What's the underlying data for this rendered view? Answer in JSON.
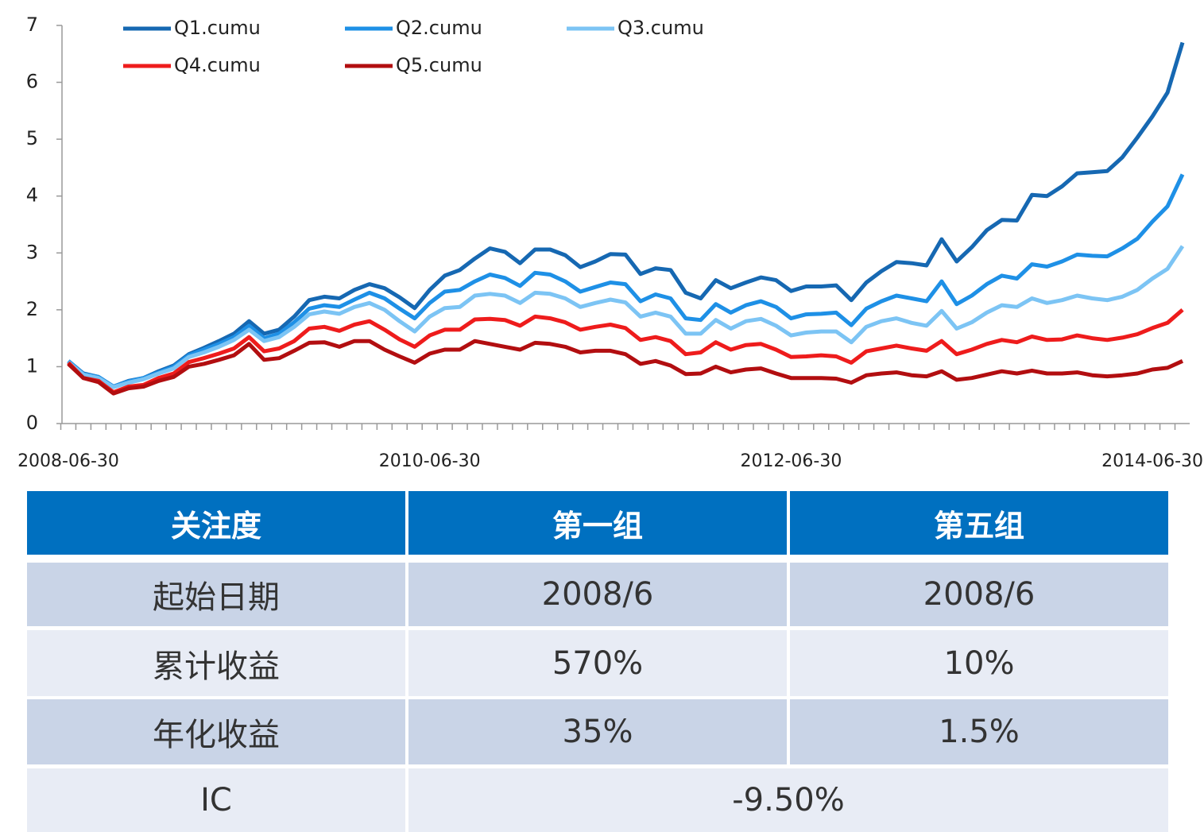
{
  "chart_data": {
    "type": "line",
    "categories": [
      "2008-06-30",
      null,
      null,
      null,
      null,
      null,
      null,
      null,
      null,
      null,
      null,
      null,
      null,
      null,
      null,
      null,
      null,
      null,
      null,
      null,
      null,
      null,
      null,
      null,
      "2010-06-30",
      null,
      null,
      null,
      null,
      null,
      null,
      null,
      null,
      null,
      null,
      null,
      null,
      null,
      null,
      null,
      null,
      null,
      null,
      null,
      null,
      null,
      null,
      null,
      "2012-06-30",
      null,
      null,
      null,
      null,
      null,
      null,
      null,
      null,
      null,
      null,
      null,
      null,
      null,
      null,
      null,
      null,
      null,
      null,
      null,
      null,
      null,
      null,
      null,
      "2014-06-30",
      null,
      null
    ],
    "ylim": [
      0,
      7
    ],
    "yticks": [
      0,
      1,
      2,
      3,
      4,
      5,
      6,
      7
    ],
    "grid": false,
    "series": [
      {
        "name": "Q1.cumu",
        "color": "#1668b2",
        "values": [
          1.1,
          0.88,
          0.82,
          0.65,
          0.75,
          0.8,
          0.92,
          1.02,
          1.22,
          1.33,
          1.45,
          1.58,
          1.8,
          1.58,
          1.65,
          1.88,
          2.17,
          2.23,
          2.2,
          2.35,
          2.45,
          2.38,
          2.22,
          2.03,
          2.35,
          2.6,
          2.7,
          2.9,
          3.08,
          3.02,
          2.82,
          3.06,
          3.06,
          2.96,
          2.75,
          2.85,
          2.98,
          2.97,
          2.63,
          2.73,
          2.7,
          2.3,
          2.2,
          2.52,
          2.38,
          2.48,
          2.57,
          2.52,
          2.33,
          2.41,
          2.41,
          2.43,
          2.17,
          2.48,
          2.68,
          2.84,
          2.82,
          2.78,
          3.24,
          2.85,
          3.1,
          3.4,
          3.58,
          3.57,
          4.02,
          4.0,
          4.17,
          4.4,
          4.42,
          4.44,
          4.68,
          5.03,
          5.4,
          5.82,
          6.7
        ]
      },
      {
        "name": "Q2.cumu",
        "color": "#1e90e6",
        "values": [
          1.1,
          0.87,
          0.82,
          0.65,
          0.74,
          0.8,
          0.9,
          1.0,
          1.2,
          1.3,
          1.4,
          1.52,
          1.72,
          1.5,
          1.58,
          1.78,
          2.02,
          2.08,
          2.05,
          2.18,
          2.3,
          2.2,
          2.02,
          1.85,
          2.12,
          2.32,
          2.35,
          2.5,
          2.62,
          2.56,
          2.42,
          2.65,
          2.62,
          2.5,
          2.32,
          2.4,
          2.48,
          2.45,
          2.15,
          2.27,
          2.2,
          1.85,
          1.82,
          2.1,
          1.95,
          2.08,
          2.15,
          2.05,
          1.85,
          1.92,
          1.93,
          1.95,
          1.73,
          2.02,
          2.15,
          2.25,
          2.2,
          2.15,
          2.5,
          2.1,
          2.25,
          2.45,
          2.6,
          2.55,
          2.8,
          2.76,
          2.85,
          2.97,
          2.95,
          2.94,
          3.08,
          3.25,
          3.55,
          3.82,
          4.38
        ]
      },
      {
        "name": "Q3.cumu",
        "color": "#7cc4f4",
        "values": [
          1.08,
          0.86,
          0.8,
          0.64,
          0.72,
          0.78,
          0.88,
          0.97,
          1.17,
          1.25,
          1.35,
          1.47,
          1.65,
          1.45,
          1.52,
          1.7,
          1.92,
          1.97,
          1.93,
          2.05,
          2.12,
          2.0,
          1.8,
          1.62,
          1.88,
          2.03,
          2.05,
          2.25,
          2.28,
          2.25,
          2.12,
          2.3,
          2.28,
          2.2,
          2.05,
          2.12,
          2.18,
          2.13,
          1.88,
          1.95,
          1.88,
          1.58,
          1.58,
          1.82,
          1.67,
          1.8,
          1.84,
          1.72,
          1.55,
          1.6,
          1.62,
          1.62,
          1.43,
          1.7,
          1.8,
          1.85,
          1.77,
          1.72,
          1.98,
          1.67,
          1.78,
          1.95,
          2.08,
          2.05,
          2.2,
          2.12,
          2.17,
          2.25,
          2.2,
          2.17,
          2.23,
          2.35,
          2.55,
          2.72,
          3.12
        ]
      },
      {
        "name": "Q4.cumu",
        "color": "#ee1c1c",
        "values": [
          1.07,
          0.8,
          0.75,
          0.55,
          0.65,
          0.68,
          0.8,
          0.88,
          1.08,
          1.15,
          1.23,
          1.32,
          1.52,
          1.27,
          1.32,
          1.45,
          1.67,
          1.7,
          1.63,
          1.74,
          1.8,
          1.65,
          1.48,
          1.35,
          1.55,
          1.65,
          1.65,
          1.83,
          1.84,
          1.82,
          1.72,
          1.88,
          1.85,
          1.78,
          1.65,
          1.7,
          1.74,
          1.68,
          1.47,
          1.52,
          1.45,
          1.22,
          1.25,
          1.43,
          1.3,
          1.38,
          1.4,
          1.3,
          1.17,
          1.18,
          1.2,
          1.18,
          1.07,
          1.27,
          1.32,
          1.37,
          1.32,
          1.28,
          1.45,
          1.22,
          1.3,
          1.4,
          1.47,
          1.43,
          1.53,
          1.47,
          1.48,
          1.55,
          1.5,
          1.47,
          1.51,
          1.57,
          1.68,
          1.77,
          2.0
        ]
      },
      {
        "name": "Q5.cumu",
        "color": "#b20e10",
        "values": [
          1.05,
          0.8,
          0.73,
          0.53,
          0.62,
          0.65,
          0.75,
          0.82,
          1.0,
          1.05,
          1.12,
          1.2,
          1.4,
          1.12,
          1.15,
          1.28,
          1.42,
          1.43,
          1.35,
          1.45,
          1.45,
          1.3,
          1.18,
          1.07,
          1.23,
          1.3,
          1.3,
          1.45,
          1.4,
          1.35,
          1.3,
          1.42,
          1.4,
          1.35,
          1.25,
          1.28,
          1.28,
          1.22,
          1.05,
          1.1,
          1.02,
          0.87,
          0.88,
          1.0,
          0.9,
          0.95,
          0.97,
          0.88,
          0.8,
          0.8,
          0.8,
          0.79,
          0.72,
          0.85,
          0.88,
          0.9,
          0.85,
          0.83,
          0.92,
          0.77,
          0.8,
          0.86,
          0.92,
          0.88,
          0.93,
          0.88,
          0.88,
          0.9,
          0.85,
          0.83,
          0.85,
          0.88,
          0.95,
          0.98,
          1.1
        ]
      }
    ]
  },
  "table": {
    "header": [
      "关注度",
      "第一组",
      "第五组"
    ],
    "rows": [
      [
        "起始日期",
        "2008/6",
        "2008/6"
      ],
      [
        "累计收益",
        "570%",
        "10%"
      ],
      [
        "年化收益",
        "35%",
        "1.5%"
      ],
      [
        "IC",
        "-9.50%"
      ]
    ]
  }
}
